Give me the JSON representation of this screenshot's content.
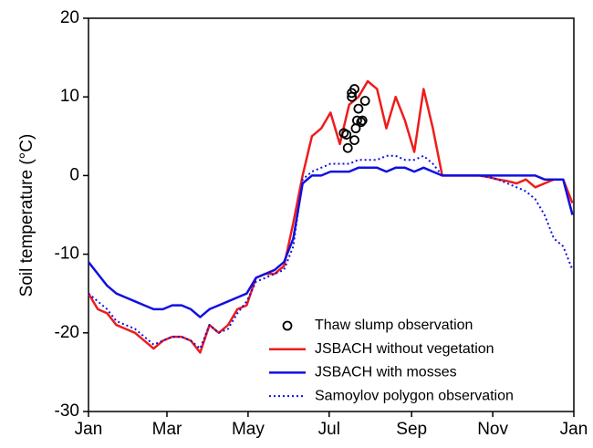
{
  "chart_data": {
    "type": "line",
    "y_label": "Soil temperature (°C)",
    "xlim": [
      0,
      365
    ],
    "xticks": [
      {
        "value": 0,
        "label": "Jan"
      },
      {
        "value": 59,
        "label": "Mar"
      },
      {
        "value": 120,
        "label": "May"
      },
      {
        "value": 181,
        "label": "Jul"
      },
      {
        "value": 243,
        "label": "Sep"
      },
      {
        "value": 304,
        "label": "Nov"
      },
      {
        "value": 365,
        "label": "Jan"
      }
    ],
    "ylim": [
      -30,
      20
    ],
    "yticks": [
      -30,
      -20,
      -10,
      0,
      10,
      20
    ],
    "grid": false,
    "legend": "lower right",
    "x": [
      0,
      7,
      14,
      21,
      28,
      35,
      42,
      49,
      56,
      63,
      70,
      77,
      84,
      91,
      98,
      105,
      112,
      119,
      126,
      133,
      140,
      147,
      154,
      161,
      168,
      175,
      182,
      189,
      196,
      203,
      210,
      217,
      224,
      231,
      238,
      245,
      252,
      259,
      266,
      273,
      280,
      287,
      294,
      301,
      308,
      315,
      322,
      329,
      336,
      343,
      350,
      357,
      364
    ],
    "series": [
      {
        "name": "Thaw slump observation",
        "type": "scatter",
        "color": "#000000",
        "x": [
          194,
          192,
          195,
          198,
          200,
          200,
          201,
          202,
          203,
          205,
          206,
          208,
          198
        ],
        "values": [
          5.2,
          5.4,
          3.5,
          10.5,
          11,
          4.5,
          6,
          7,
          8.5,
          6.8,
          7,
          9.5,
          10
        ]
      },
      {
        "name": "JSBACH without vegetation",
        "type": "line",
        "color": "#ee1c1c",
        "linestyle": "solid",
        "values": [
          -15,
          -17,
          -17.5,
          -19,
          -19.5,
          -20,
          -21,
          -22,
          -21,
          -20.5,
          -20.5,
          -21,
          -22.5,
          -19,
          -20,
          -19,
          -17,
          -16.5,
          -13,
          -12.5,
          -12.5,
          -11.5,
          -6,
          0,
          5,
          6,
          8,
          4,
          9,
          10,
          12,
          11,
          6,
          10,
          7,
          3,
          11,
          6,
          0,
          0,
          0,
          0,
          0,
          -0.2,
          -0.5,
          -0.7,
          -1,
          -0.5,
          -1.5,
          -1,
          -0.5,
          -0.5,
          -3.5
        ]
      },
      {
        "name": "JSBACH with mosses",
        "type": "line",
        "color": "#1010e0",
        "linestyle": "solid",
        "values": [
          -11,
          -12.5,
          -14,
          -15,
          -15.5,
          -16,
          -16.5,
          -17,
          -17,
          -16.5,
          -16.5,
          -17,
          -18,
          -17,
          -16.5,
          -16,
          -15.5,
          -15,
          -13,
          -12.5,
          -12,
          -11,
          -8,
          -1,
          0,
          0,
          0.5,
          0.5,
          0.5,
          1,
          1,
          1,
          0.5,
          1,
          1,
          0.5,
          1,
          0.5,
          0,
          0,
          0,
          0,
          0,
          0,
          0,
          0,
          0,
          0,
          0,
          -0.5,
          -0.5,
          -0.5,
          -5
        ]
      },
      {
        "name": "Samoylov polygon observation",
        "type": "line",
        "color": "#1010e0",
        "linestyle": "dotted",
        "values": [
          -15,
          -16,
          -17,
          -18.5,
          -19,
          -19.5,
          -20.5,
          -21.5,
          -21,
          -20.5,
          -20.5,
          -21,
          -22,
          -19,
          -20,
          -19.5,
          -17.5,
          -16,
          -13.5,
          -13,
          -12.5,
          -12,
          -9,
          -0.5,
          0.5,
          1,
          1.5,
          1.5,
          1.5,
          2,
          2,
          2,
          2.5,
          2.5,
          2,
          2,
          2.5,
          1.5,
          0,
          0,
          0,
          0,
          0,
          -0.2,
          -0.5,
          -1,
          -1.5,
          -2,
          -3,
          -5,
          -8,
          -9,
          -12
        ]
      }
    ]
  }
}
